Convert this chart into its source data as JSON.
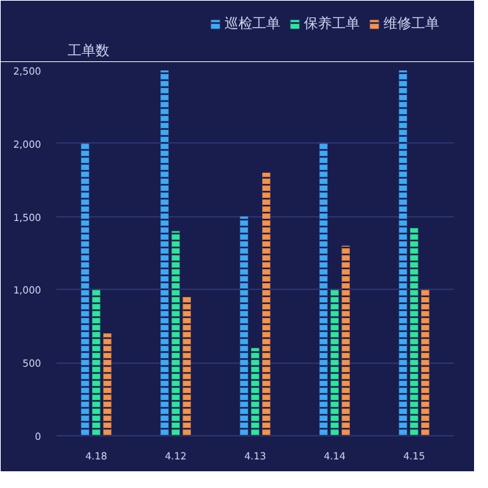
{
  "chart_data": {
    "type": "bar",
    "ylabel": "工单数",
    "categories": [
      "4.18",
      "4.12",
      "4.13",
      "4.14",
      "4.15"
    ],
    "series": [
      {
        "name": "巡检工单",
        "color": "#3fa9f5",
        "values": [
          2000,
          2500,
          1500,
          2000,
          2500
        ]
      },
      {
        "name": "保养工单",
        "color": "#2ee59d",
        "values": [
          1000,
          1400,
          600,
          1000,
          1420
        ]
      },
      {
        "name": "维修工单",
        "color": "#f5934a",
        "values": [
          700,
          950,
          1800,
          1300,
          1000
        ]
      }
    ],
    "ylim": [
      0,
      2500
    ],
    "yticks": [
      {
        "value": 0,
        "label": "0"
      },
      {
        "value": 500,
        "label": "500"
      },
      {
        "value": 1000,
        "label": "1,000"
      },
      {
        "value": 1500,
        "label": "1,500"
      },
      {
        "value": 2000,
        "label": "2,000"
      },
      {
        "value": 2500,
        "label": "2,500"
      }
    ],
    "grid": "y",
    "legend": "top right"
  }
}
